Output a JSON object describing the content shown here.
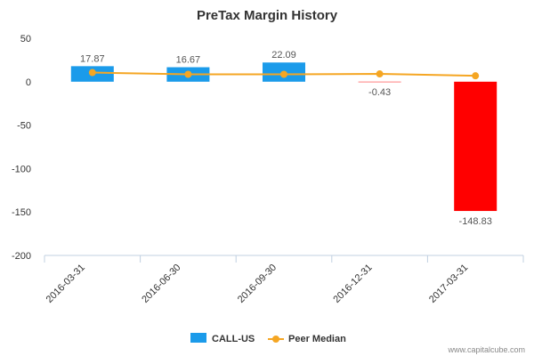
{
  "chart_data": {
    "type": "bar",
    "title": "PreTax Margin History",
    "categories": [
      "2016-03-31",
      "2016-06-30",
      "2016-09-30",
      "2016-12-31",
      "2017-03-31"
    ],
    "ylim": [
      -200,
      50
    ],
    "yticks": [
      50,
      0,
      -50,
      -100,
      -150,
      -200
    ],
    "series": [
      {
        "name": "CALL-US",
        "type": "bar",
        "values": [
          17.87,
          16.67,
          22.09,
          -0.43,
          -148.83
        ],
        "labels": [
          "17.87",
          "16.67",
          "22.09",
          "-0.43",
          "-148.83"
        ],
        "color": "#1b9bea",
        "negative_color": "#ff0000"
      },
      {
        "name": "Peer Median",
        "type": "line",
        "values": [
          10.5,
          8.5,
          8.5,
          9.0,
          6.8
        ],
        "color": "#f5a623"
      }
    ],
    "legend": "bottom-center",
    "grid": false
  },
  "watermark": "www.capitalcube.com"
}
